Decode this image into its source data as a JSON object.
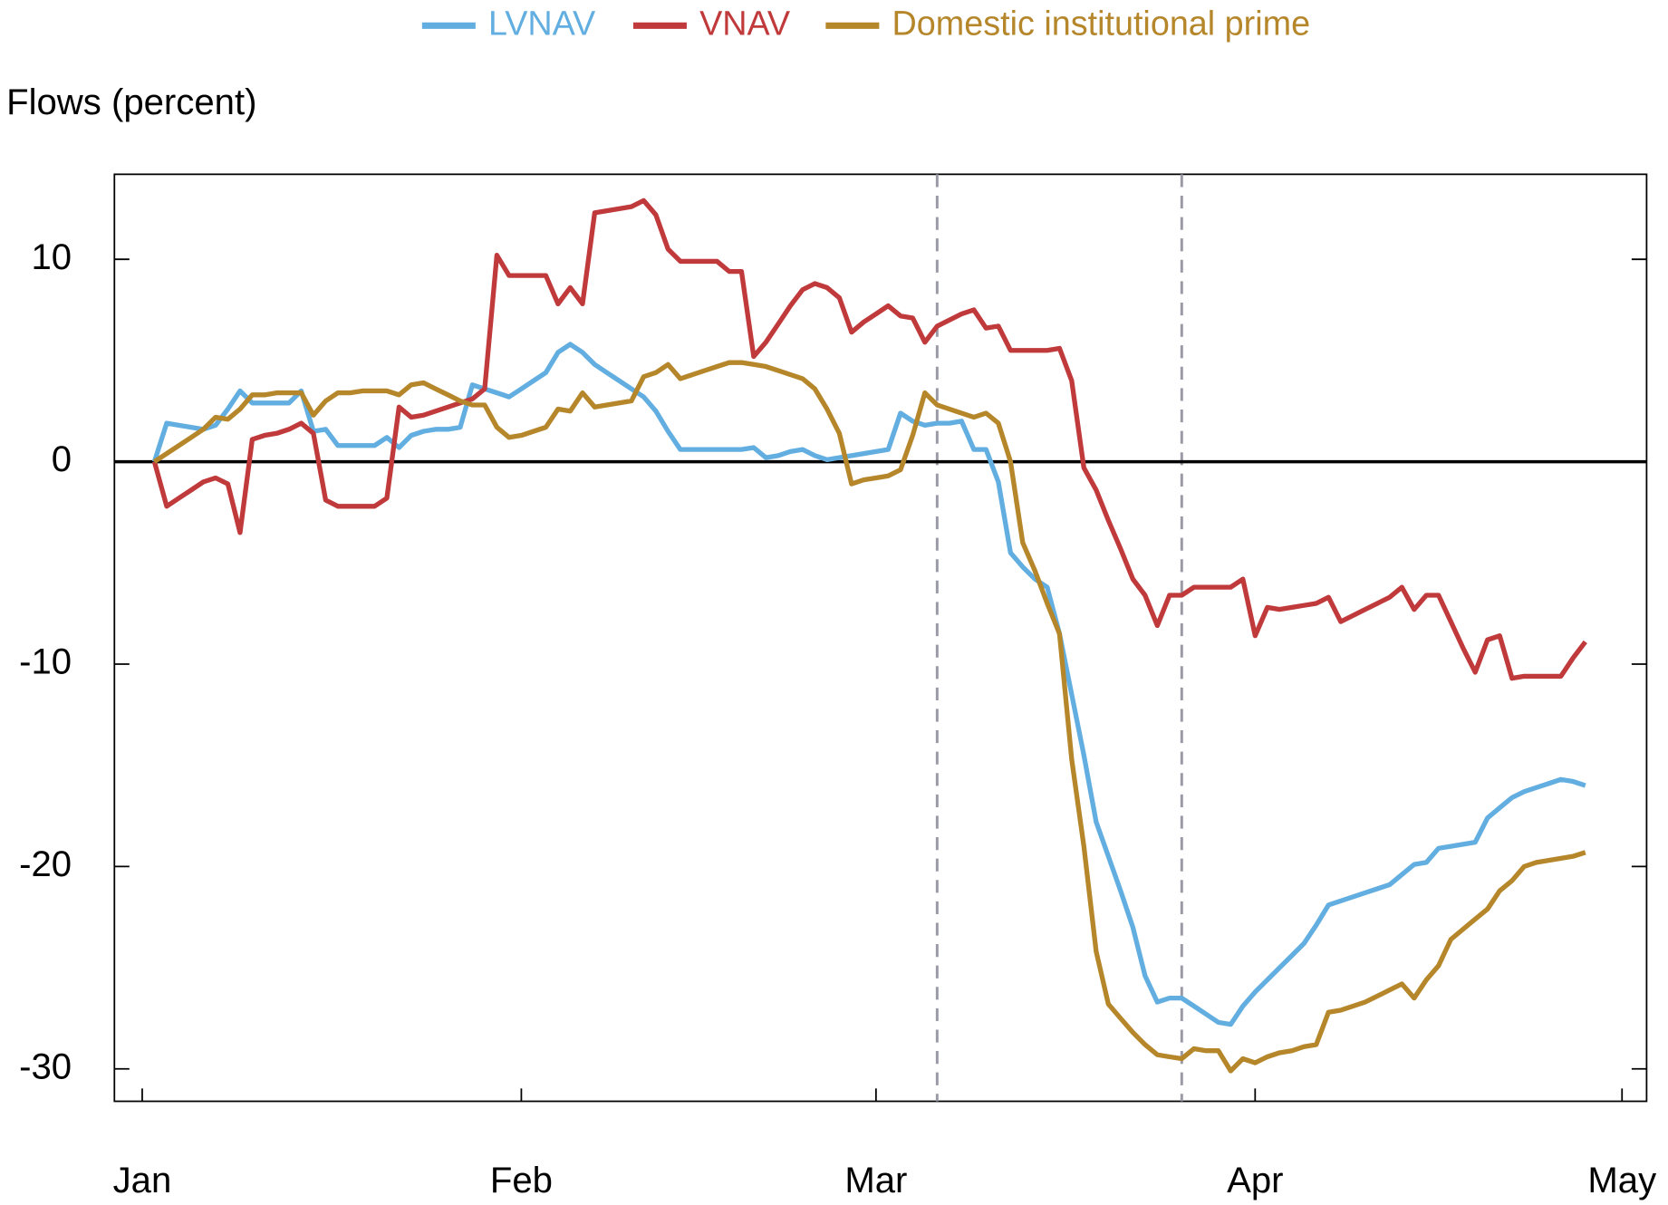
{
  "chart_data": {
    "type": "line",
    "y_label": "Flows (percent)",
    "categories": [
      "Jan",
      null,
      null,
      null,
      null,
      null,
      null,
      null,
      null,
      null,
      null,
      null,
      null,
      null,
      null,
      null,
      null,
      null,
      null,
      null,
      null,
      null,
      null,
      null,
      null,
      null,
      null,
      null,
      null,
      null,
      null,
      "Feb",
      null,
      null,
      null,
      null,
      null,
      null,
      null,
      null,
      null,
      null,
      null,
      null,
      null,
      null,
      null,
      null,
      null,
      null,
      null,
      null,
      null,
      null,
      null,
      null,
      null,
      null,
      null,
      null,
      "Mar",
      null,
      null,
      null,
      null,
      null,
      null,
      null,
      null,
      null,
      null,
      null,
      null,
      null,
      null,
      null,
      null,
      null,
      null,
      null,
      null,
      null,
      null,
      null,
      null,
      null,
      null,
      null,
      null,
      null,
      null,
      "Apr",
      null,
      null,
      null,
      null,
      null,
      null,
      null,
      null,
      null,
      null,
      null,
      null,
      null,
      null,
      null,
      null,
      null,
      null,
      null,
      null,
      null,
      null,
      null,
      null,
      null,
      null,
      null,
      null,
      null,
      "May"
    ],
    "series": [
      {
        "name": "LVNAV",
        "color": "#63aee0",
        "values": [
          null,
          0,
          1.9,
          1.8,
          1.7,
          1.6,
          1.8,
          2.6,
          3.5,
          2.9,
          2.9,
          2.9,
          2.9,
          3.5,
          1.5,
          1.6,
          0.8,
          0.8,
          0.8,
          0.8,
          1.2,
          0.7,
          1.3,
          1.5,
          1.6,
          1.6,
          1.7,
          3.8,
          3.6,
          3.4,
          3.2,
          3.6,
          4.0,
          4.4,
          5.4,
          5.8,
          5.4,
          4.8,
          4.4,
          4.0,
          3.6,
          3.2,
          2.5,
          1.5,
          0.6,
          0.6,
          0.6,
          0.6,
          0.6,
          0.6,
          0.7,
          0.2,
          0.3,
          0.5,
          0.6,
          0.3,
          0.1,
          0.2,
          0.3,
          0.4,
          0.5,
          0.6,
          2.4,
          2.0,
          1.8,
          1.9,
          1.9,
          2.0,
          0.6,
          0.6,
          -1.0,
          -4.5,
          -5.2,
          -5.8,
          -6.2,
          -8.5,
          -11.5,
          -14.5,
          -17.8,
          -19.5,
          -21.2,
          -23.0,
          -25.4,
          -26.7,
          -26.5,
          -26.5,
          -26.9,
          -27.3,
          -27.7,
          -27.8,
          -26.9,
          -26.2,
          -25.6,
          -25.0,
          -24.4,
          -23.8,
          -22.9,
          -21.9,
          -21.7,
          -21.5,
          -21.3,
          -21.1,
          -20.9,
          -20.4,
          -19.9,
          -19.8,
          -19.1,
          -19.0,
          -18.9,
          -18.8,
          -17.6,
          -17.1,
          -16.6,
          -16.3,
          -16.1,
          -15.9,
          -15.7,
          -15.8,
          -16.0,
          null,
          null,
          null
        ]
      },
      {
        "name": "VNAV",
        "color": "#c0393b",
        "values": [
          null,
          0,
          -2.2,
          -1.8,
          -1.4,
          -1.0,
          -0.8,
          -1.1,
          -3.5,
          1.1,
          1.3,
          1.4,
          1.6,
          1.9,
          1.4,
          -1.9,
          -2.2,
          -2.2,
          -2.2,
          -2.2,
          -1.8,
          2.7,
          2.2,
          2.3,
          2.5,
          2.7,
          2.9,
          3.1,
          3.6,
          10.2,
          9.2,
          9.2,
          9.2,
          9.2,
          7.8,
          8.6,
          7.8,
          12.3,
          12.4,
          12.5,
          12.6,
          12.9,
          12.2,
          10.5,
          9.9,
          9.9,
          9.9,
          9.9,
          9.4,
          9.4,
          5.2,
          5.9,
          6.8,
          7.7,
          8.5,
          8.8,
          8.6,
          8.1,
          6.4,
          6.9,
          7.3,
          7.7,
          7.2,
          7.1,
          5.9,
          6.7,
          7.0,
          7.3,
          7.5,
          6.6,
          6.7,
          5.5,
          5.5,
          5.5,
          5.5,
          5.6,
          4.0,
          -0.3,
          -1.4,
          -2.9,
          -4.3,
          -5.8,
          -6.6,
          -8.1,
          -6.6,
          -6.6,
          -6.2,
          -6.2,
          -6.2,
          -6.2,
          -5.8,
          -8.6,
          -7.2,
          -7.3,
          -7.2,
          -7.1,
          -7.0,
          -6.7,
          -7.9,
          -7.6,
          -7.3,
          -7.0,
          -6.7,
          -6.2,
          -7.3,
          -6.6,
          -6.6,
          -7.9,
          -9.2,
          -10.4,
          -8.8,
          -8.6,
          -10.7,
          -10.6,
          -10.6,
          -10.6,
          -10.6,
          -9.7,
          -8.9,
          null,
          null,
          null
        ]
      },
      {
        "name": "Domestic institutional prime",
        "color": "#b5862a",
        "values": [
          null,
          0,
          0.4,
          0.8,
          1.2,
          1.6,
          2.2,
          2.1,
          2.6,
          3.3,
          3.3,
          3.4,
          3.4,
          3.4,
          2.3,
          3.0,
          3.4,
          3.4,
          3.5,
          3.5,
          3.5,
          3.3,
          3.8,
          3.9,
          3.6,
          3.3,
          3.0,
          2.8,
          2.8,
          1.7,
          1.2,
          1.3,
          1.5,
          1.7,
          2.6,
          2.5,
          3.4,
          2.7,
          2.8,
          2.9,
          3.0,
          4.2,
          4.4,
          4.8,
          4.1,
          4.3,
          4.5,
          4.7,
          4.9,
          4.9,
          4.8,
          4.7,
          4.5,
          4.3,
          4.1,
          3.6,
          2.6,
          1.4,
          -1.1,
          -0.9,
          -0.8,
          -0.7,
          -0.4,
          1.3,
          3.4,
          2.8,
          2.6,
          2.4,
          2.2,
          2.4,
          1.9,
          0.0,
          -4.0,
          -5.4,
          -7.0,
          -8.5,
          -14.7,
          -19.0,
          -24.2,
          -26.8,
          -27.5,
          -28.2,
          -28.8,
          -29.3,
          -29.4,
          -29.5,
          -29.0,
          -29.1,
          -29.1,
          -30.1,
          -29.5,
          -29.7,
          -29.4,
          -29.2,
          -29.1,
          -28.9,
          -28.8,
          -27.2,
          -27.1,
          -26.9,
          -26.7,
          -26.4,
          -26.1,
          -25.8,
          -26.5,
          -25.6,
          -24.9,
          -23.6,
          -23.1,
          -22.6,
          -22.1,
          -21.2,
          -20.7,
          -20.0,
          -19.8,
          -19.7,
          -19.6,
          -19.5,
          -19.3,
          null,
          null,
          null
        ]
      }
    ],
    "vlines": [
      65,
      85
    ],
    "ylim": [
      -31.6,
      14.2
    ],
    "yticks": [
      -30,
      -20,
      -10,
      0,
      10
    ],
    "zero_line": true,
    "legend": "top"
  }
}
